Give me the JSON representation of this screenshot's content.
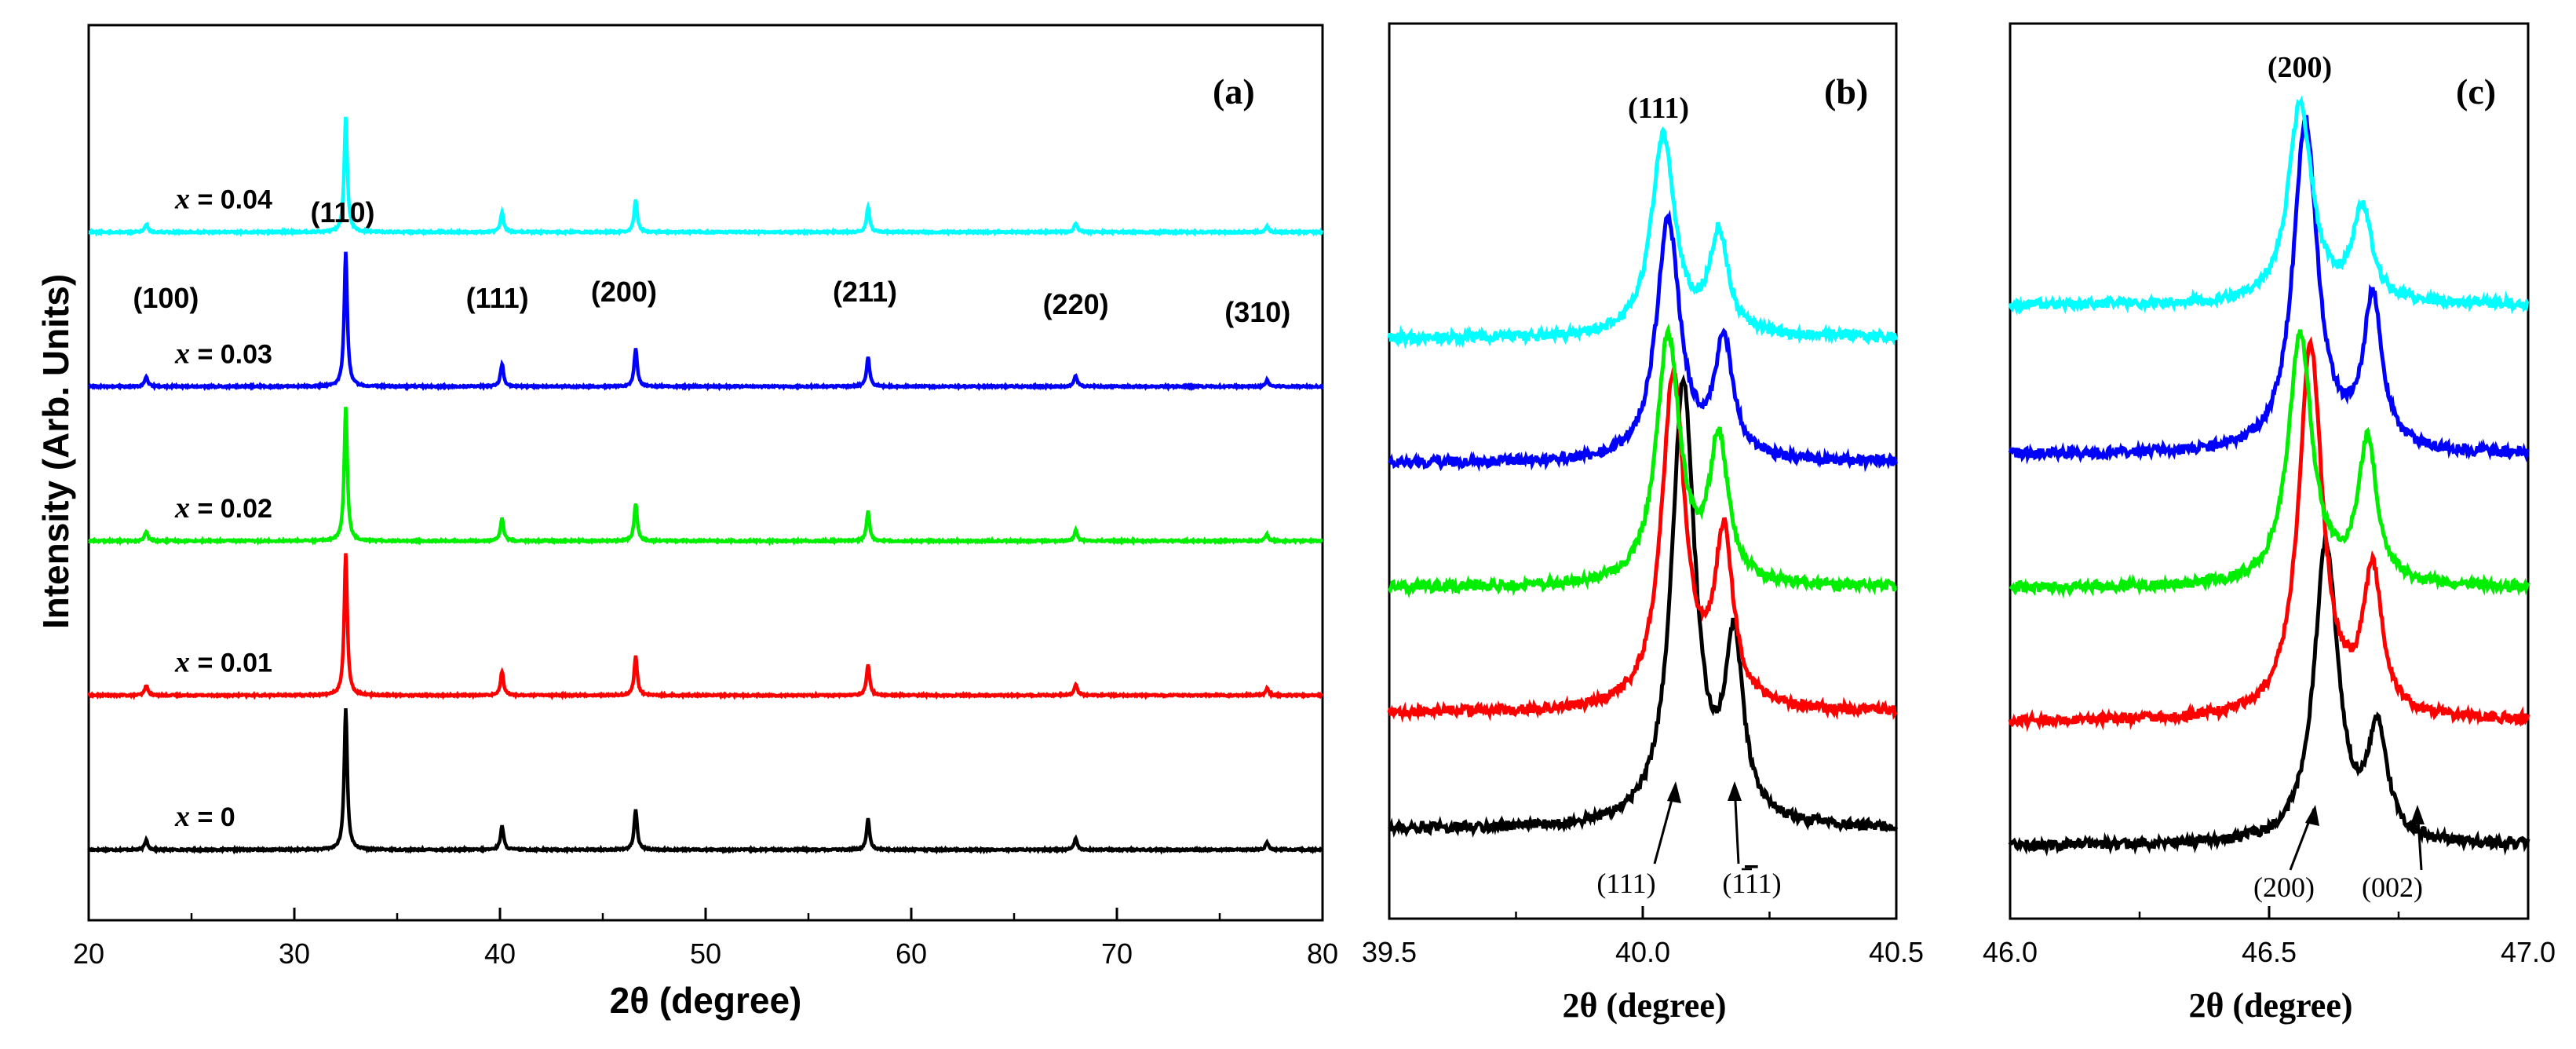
{
  "chart_data": [
    {
      "type": "line",
      "panel": "(a)",
      "xlabel": "2θ (degree)",
      "ylabel": "Intensity (Arb. Units)",
      "xlim": [
        20,
        80
      ],
      "xticks": [
        "20",
        "30",
        "40",
        "50",
        "60",
        "70",
        "80"
      ],
      "xtick_values": [
        20,
        30,
        40,
        50,
        60,
        70,
        80
      ],
      "peaks": [
        {
          "label": "(100)",
          "x": 22.8,
          "height": 0.07
        },
        {
          "label": "(110)",
          "x": 32.5,
          "height": 1.0
        },
        {
          "label": "(111)",
          "x": 40.1,
          "height": 0.17
        },
        {
          "label": "(200)",
          "x": 46.6,
          "height": 0.28
        },
        {
          "label": "(211)",
          "x": 57.9,
          "height": 0.22
        },
        {
          "label": "(220)",
          "x": 68.0,
          "height": 0.08
        },
        {
          "label": "(310)",
          "x": 77.3,
          "height": 0.05
        }
      ],
      "series": [
        {
          "name": "x = 0",
          "prefix": "x",
          "suffix": " = 0",
          "color": "#000000",
          "baseline": 0.08,
          "scale": 1.0
        },
        {
          "name": "x = 0.01",
          "prefix": "x",
          "suffix": " = 0.01",
          "color": "#ff0000",
          "baseline": 0.27,
          "scale": 1.0
        },
        {
          "name": "x = 0.02",
          "prefix": "x",
          "suffix": " = 0.02",
          "color": "#00ee00",
          "baseline": 0.46,
          "scale": 0.95
        },
        {
          "name": "x = 0.03",
          "prefix": "x",
          "suffix": " = 0.03",
          "color": "#0000ff",
          "baseline": 0.65,
          "scale": 0.95
        },
        {
          "name": "x = 0.04",
          "prefix": "x",
          "suffix": " = 0.04",
          "color": "#00ffff",
          "baseline": 0.84,
          "scale": 0.82
        }
      ]
    },
    {
      "type": "line",
      "panel": "(b)",
      "xlabel": "2θ (degree)",
      "xlim": [
        39.5,
        40.5
      ],
      "xticks": [
        "39.5",
        "40.0",
        "40.5"
      ],
      "xtick_values": [
        39.5,
        40.0,
        40.5
      ],
      "top_label": "(111)",
      "split_labels": [
        "(111)",
        "(1",
        "1",
        "1)"
      ],
      "split_label_overlined": "1",
      "series": [
        {
          "name": "x = 0",
          "color": "#000000",
          "baseline": 0.07,
          "p1": {
            "x": 40.08,
            "h": 0.53
          },
          "p2": {
            "x": 40.18,
            "h": 0.21
          }
        },
        {
          "name": "x = 0.01",
          "color": "#ff0000",
          "baseline": 0.21,
          "p1": {
            "x": 40.06,
            "h": 0.4
          },
          "p2": {
            "x": 40.16,
            "h": 0.2
          }
        },
        {
          "name": "x = 0.02",
          "color": "#00ee00",
          "baseline": 0.36,
          "p1": {
            "x": 40.05,
            "h": 0.3
          },
          "p2": {
            "x": 40.15,
            "h": 0.17
          }
        },
        {
          "name": "x = 0.03",
          "color": "#0000ff",
          "baseline": 0.51,
          "p1": {
            "x": 40.05,
            "h": 0.29
          },
          "p2": {
            "x": 40.16,
            "h": 0.14
          }
        },
        {
          "name": "x = 0.04",
          "color": "#00ffff",
          "baseline": 0.66,
          "p1": {
            "x": 40.04,
            "h": 0.24
          },
          "p2": {
            "x": 40.15,
            "h": 0.12
          }
        }
      ]
    },
    {
      "type": "line",
      "panel": "(c)",
      "xlabel": "2θ (degree)",
      "xlim": [
        46.0,
        47.0
      ],
      "xticks": [
        "46.0",
        "46.5",
        "47.0"
      ],
      "xtick_values": [
        46.0,
        46.5,
        47.0
      ],
      "top_label": "(200)",
      "split_labels": [
        "(200)",
        "(002)"
      ],
      "series": [
        {
          "name": "x = 0",
          "color": "#000000",
          "baseline": 0.05,
          "p1": {
            "x": 46.61,
            "h": 0.36
          },
          "p2": {
            "x": 46.71,
            "h": 0.13
          }
        },
        {
          "name": "x = 0.01",
          "color": "#ff0000",
          "baseline": 0.2,
          "p1": {
            "x": 46.58,
            "h": 0.45
          },
          "p2": {
            "x": 46.7,
            "h": 0.17
          }
        },
        {
          "name": "x = 0.02",
          "color": "#00ee00",
          "baseline": 0.36,
          "p1": {
            "x": 46.56,
            "h": 0.3
          },
          "p2": {
            "x": 46.69,
            "h": 0.17
          }
        },
        {
          "name": "x = 0.03",
          "color": "#0000ff",
          "baseline": 0.52,
          "p1": {
            "x": 46.57,
            "h": 0.4
          },
          "p2": {
            "x": 46.7,
            "h": 0.18
          }
        },
        {
          "name": "x = 0.04",
          "color": "#00ffff",
          "baseline": 0.7,
          "p1": {
            "x": 46.56,
            "h": 0.24
          },
          "p2": {
            "x": 46.68,
            "h": 0.11
          }
        }
      ]
    }
  ]
}
